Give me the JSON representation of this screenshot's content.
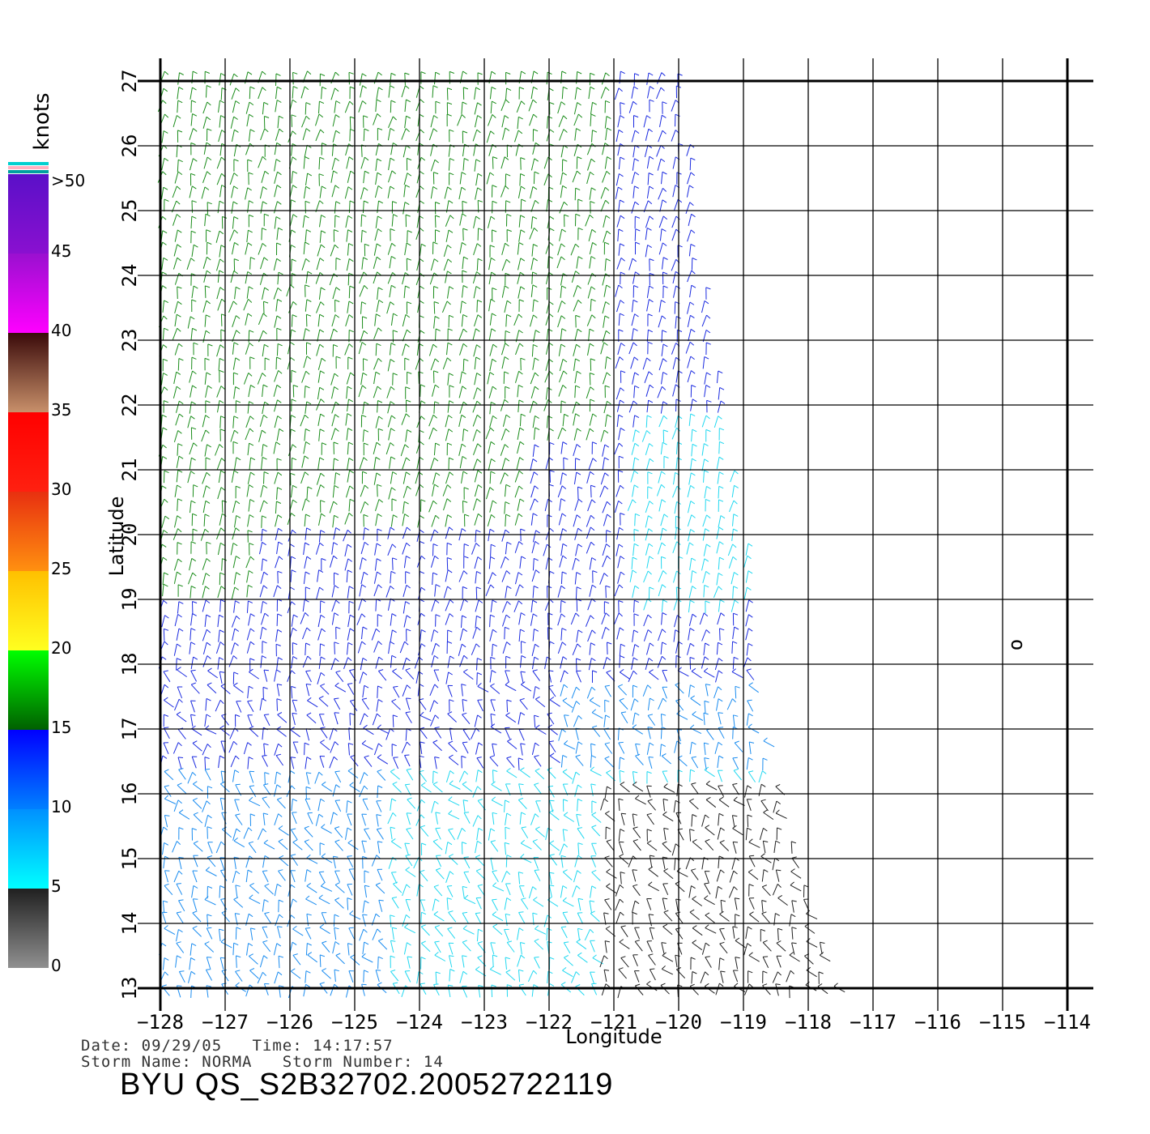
{
  "map": {
    "xlabel": "Longitude",
    "ylabel": "Latitude",
    "lon_range": [
      -128,
      -114
    ],
    "lat_range": [
      13,
      27
    ],
    "lon_ticks": [
      "−128",
      "−127",
      "−126",
      "−125",
      "−124",
      "−123",
      "−122",
      "−121",
      "−120",
      "−119",
      "−118",
      "−117",
      "−116",
      "−115",
      "−114"
    ],
    "lat_ticks": [
      "13",
      "14",
      "15",
      "16",
      "17",
      "18",
      "19",
      "20",
      "21",
      "22",
      "23",
      "24",
      "25",
      "26",
      "27"
    ],
    "grid": true,
    "storm_center_symbol": "o"
  },
  "legend": {
    "title": "knots",
    "labels": [
      ">50",
      "45",
      "40",
      "35",
      "30",
      "25",
      "20",
      "15",
      "10",
      "5",
      "0"
    ],
    "bands": [
      {
        "from": 50,
        "to": 45,
        "top_color": "#5a10c8",
        "bottom_color": "#8a10d0"
      },
      {
        "from": 45,
        "to": 40,
        "top_color": "#9a10d0",
        "bottom_color": "#ff00ff"
      },
      {
        "from": 40,
        "to": 35,
        "top_color": "#3a0a0a",
        "bottom_color": "#c8906a"
      },
      {
        "from": 35,
        "to": 30,
        "top_color": "#ff0000",
        "bottom_color": "#ff2010"
      },
      {
        "from": 30,
        "to": 25,
        "top_color": "#e83010",
        "bottom_color": "#ff9010"
      },
      {
        "from": 25,
        "to": 20,
        "top_color": "#ffc000",
        "bottom_color": "#ffff20"
      },
      {
        "from": 20,
        "to": 15,
        "top_color": "#00ff00",
        "bottom_color": "#006000"
      },
      {
        "from": 15,
        "to": 10,
        "top_color": "#0000ff",
        "bottom_color": "#0080ff"
      },
      {
        "from": 10,
        "to": 5,
        "top_color": "#0090ff",
        "bottom_color": "#00ffff"
      },
      {
        "from": 5,
        "to": 0,
        "top_color": "#202020",
        "bottom_color": "#909090"
      }
    ]
  },
  "wind_colors": {
    "green": "#1a8c1a",
    "blue": "#1a2ae0",
    "lightblue": "#1a8cf0",
    "cyan": "#20d8f0",
    "black": "#202020",
    "yellow": "#e8e020"
  },
  "info": {
    "line1": "Date: 09/29/05   Time: 14:17:57",
    "line2": "Storm Name: NORMA   Storm Number: 14",
    "file_title": "BYU QS_S2B32702.20052722119"
  }
}
